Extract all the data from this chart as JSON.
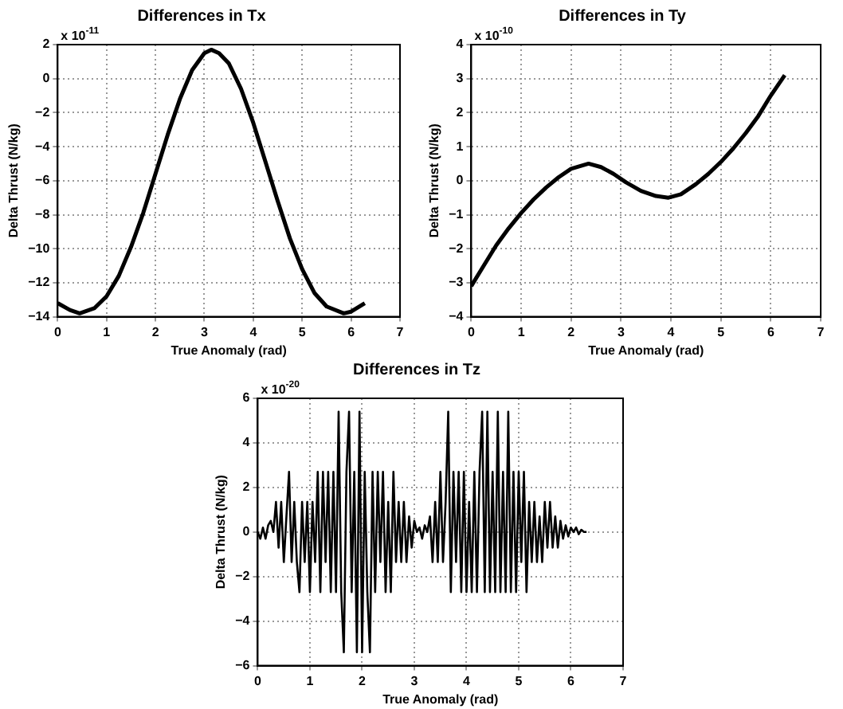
{
  "chart_data": [
    {
      "type": "line",
      "title": "Differences in Tx",
      "xlabel": "True Anomaly (rad)",
      "ylabel": "Delta Thrust (N/kg)",
      "annotations": [
        "x 10$^{-11}$"
      ],
      "series": [
        {
          "color": "#000000",
          "x": [
            0,
            0.25,
            0.45,
            0.75,
            1,
            1.25,
            1.5,
            1.75,
            2,
            2.25,
            2.5,
            2.75,
            3,
            3.14,
            3.3,
            3.5,
            3.75,
            4,
            4.25,
            4.5,
            4.75,
            5,
            5.25,
            5.5,
            5.85,
            6,
            6.28
          ],
          "values": [
            -13.2,
            -13.6,
            -13.8,
            -13.5,
            -12.8,
            -11.6,
            -9.9,
            -7.9,
            -5.6,
            -3.3,
            -1.2,
            0.5,
            1.5,
            1.7,
            1.5,
            0.9,
            -0.6,
            -2.6,
            -4.9,
            -7.2,
            -9.4,
            -11.2,
            -12.6,
            -13.4,
            -13.8,
            -13.7,
            -13.2
          ]
        }
      ],
      "xlim": [
        0,
        7
      ],
      "xticks": [
        0,
        1,
        2,
        3,
        4,
        5,
        6,
        7
      ],
      "ylim": [
        -14,
        2
      ],
      "yticks": [
        -14,
        -12,
        -10,
        -8,
        -6,
        -4,
        -2,
        0,
        2
      ],
      "grid": true,
      "marker": "none",
      "line_style": "solid"
    },
    {
      "type": "line",
      "title": "Differences in Ty",
      "xlabel": "True Anomaly (rad)",
      "ylabel": "Delta Thrust (N/kg)",
      "annotations": [
        "x 10$^{-10}$"
      ],
      "series": [
        {
          "color": "#000000",
          "x": [
            0,
            0.25,
            0.5,
            0.75,
            1,
            1.25,
            1.5,
            1.75,
            2,
            2.35,
            2.6,
            2.85,
            3.1,
            3.4,
            3.7,
            3.95,
            4.2,
            4.5,
            4.75,
            5,
            5.25,
            5.5,
            5.75,
            6,
            6.28
          ],
          "values": [
            -3.1,
            -2.5,
            -1.9,
            -1.4,
            -0.95,
            -0.55,
            -0.2,
            0.1,
            0.35,
            0.5,
            0.4,
            0.2,
            -0.05,
            -0.3,
            -0.45,
            -0.5,
            -0.4,
            -0.1,
            0.2,
            0.55,
            0.95,
            1.4,
            1.9,
            2.5,
            3.1
          ]
        }
      ],
      "xlim": [
        0,
        7
      ],
      "xticks": [
        0,
        1,
        2,
        3,
        4,
        5,
        6,
        7
      ],
      "ylim": [
        -4,
        4
      ],
      "yticks": [
        -4,
        -3,
        -2,
        -1,
        0,
        1,
        2,
        3,
        4
      ],
      "grid": true,
      "marker": "none",
      "line_style": "solid"
    },
    {
      "type": "line",
      "title": "Differences in Tz",
      "xlabel": "True Anomaly (rad)",
      "ylabel": "Delta Thrust (N/kg)",
      "annotations": [
        "x 10$^{-20}$"
      ],
      "series": [
        {
          "color": "#000000",
          "x": [
            0,
            0.05,
            0.1,
            0.15,
            0.2,
            0.25,
            0.3,
            0.35,
            0.4,
            0.45,
            0.5,
            0.55,
            0.6,
            0.65,
            0.7,
            0.75,
            0.8,
            0.85,
            0.9,
            0.95,
            1,
            1.05,
            1.1,
            1.15,
            1.2,
            1.25,
            1.3,
            1.35,
            1.4,
            1.45,
            1.5,
            1.55,
            1.6,
            1.65,
            1.7,
            1.75,
            1.8,
            1.85,
            1.9,
            1.95,
            2,
            2.05,
            2.1,
            2.15,
            2.2,
            2.25,
            2.3,
            2.35,
            2.4,
            2.45,
            2.5,
            2.55,
            2.6,
            2.65,
            2.7,
            2.75,
            2.8,
            2.85,
            2.9,
            2.95,
            3,
            3.05,
            3.1,
            3.15,
            3.2,
            3.25,
            3.3,
            3.35,
            3.4,
            3.45,
            3.5,
            3.55,
            3.6,
            3.65,
            3.7,
            3.75,
            3.8,
            3.85,
            3.9,
            3.95,
            4,
            4.05,
            4.1,
            4.15,
            4.2,
            4.25,
            4.3,
            4.35,
            4.4,
            4.45,
            4.5,
            4.55,
            4.6,
            4.65,
            4.7,
            4.75,
            4.8,
            4.85,
            4.9,
            4.95,
            5,
            5.05,
            5.1,
            5.15,
            5.2,
            5.25,
            5.3,
            5.35,
            5.4,
            5.45,
            5.5,
            5.55,
            5.6,
            5.65,
            5.7,
            5.75,
            5.8,
            5.85,
            5.9,
            5.95,
            6,
            6.05,
            6.1,
            6.15,
            6.2,
            6.25,
            6.3
          ],
          "values": [
            0,
            -0.3,
            0.2,
            -0.3,
            0.3,
            0.5,
            0,
            1.35,
            -0.7,
            1.35,
            -1.35,
            0.7,
            2.7,
            -1.35,
            1.35,
            -1.35,
            -2.7,
            1.35,
            -1.35,
            1.35,
            -2.7,
            1.35,
            -1.35,
            2.7,
            -2.7,
            2.7,
            -1.35,
            2.7,
            -2.7,
            2.7,
            -2.7,
            5.4,
            -2.7,
            -5.4,
            2.7,
            5.4,
            -2.7,
            2.7,
            -5.4,
            5.4,
            -5.4,
            2.7,
            -2.7,
            -5.4,
            2.7,
            -2.7,
            2.7,
            -1.35,
            2.7,
            -2.7,
            1.35,
            -2.7,
            2.7,
            -1.35,
            1.35,
            -1.35,
            1.35,
            -1.35,
            0.7,
            -0.7,
            0.5,
            0,
            0.2,
            -0.3,
            0.3,
            0,
            0.7,
            -1.35,
            1.35,
            -1.35,
            2.7,
            -1.35,
            1.35,
            5.4,
            -2.7,
            2.7,
            -1.35,
            2.7,
            -2.7,
            2.7,
            -2.7,
            1.35,
            -2.7,
            2.7,
            -2.7,
            2.7,
            5.4,
            -2.7,
            5.4,
            -2.7,
            2.7,
            -2.7,
            5.4,
            -2.7,
            2.7,
            -2.7,
            5.4,
            -2.7,
            2.7,
            -2.7,
            2.7,
            -1.35,
            2.7,
            -2.7,
            1.35,
            -1.35,
            1.35,
            -1.35,
            0.7,
            -1.35,
            1.35,
            -0.7,
            1.35,
            -0.7,
            0.7,
            -0.7,
            0.5,
            -0.3,
            0.3,
            -0.2,
            0.2,
            0,
            0.2,
            -0.1,
            0.1,
            0,
            0
          ]
        }
      ],
      "xlim": [
        0,
        7
      ],
      "xticks": [
        0,
        1,
        2,
        3,
        4,
        5,
        6,
        7
      ],
      "ylim": [
        -6,
        6
      ],
      "yticks": [
        -6,
        -4,
        -2,
        0,
        2,
        4,
        6
      ],
      "grid": true,
      "marker": "none",
      "line_style": "solid"
    }
  ]
}
